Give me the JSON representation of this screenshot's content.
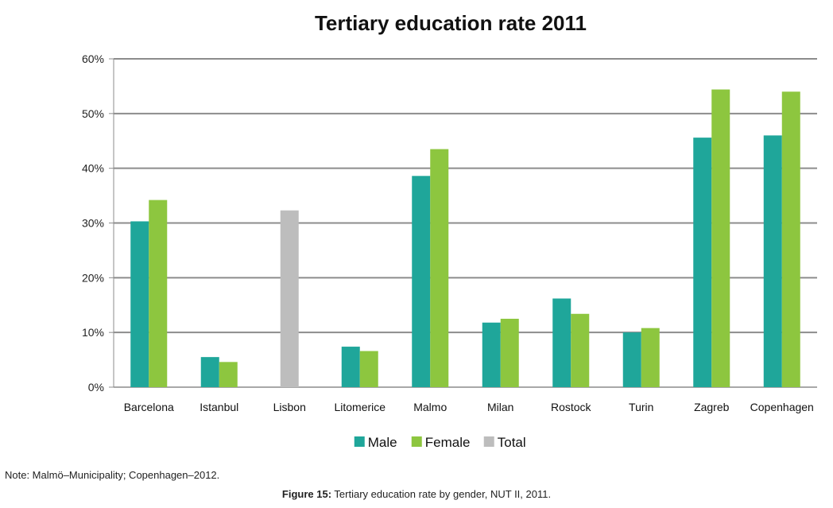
{
  "chart_data": {
    "type": "bar",
    "title": "Tertiary education rate 2011",
    "xlabel": "",
    "ylabel": "",
    "ylim": [
      0,
      60
    ],
    "yticks": [
      "0%",
      "10%",
      "20%",
      "30%",
      "40%",
      "50%",
      "60%"
    ],
    "ytick_values": [
      0,
      10,
      20,
      30,
      40,
      50,
      60
    ],
    "grid": true,
    "legend_position": "bottom",
    "categories": [
      "Barcelona",
      "Istanbul",
      "Lisbon",
      "Litomerice",
      "Malmo",
      "Milan",
      "Rostock",
      "Turin",
      "Zagreb",
      "Copenhagen"
    ],
    "series": [
      {
        "name": "Male",
        "color": "#1fa69a",
        "values": [
          30.3,
          5.5,
          null,
          7.4,
          38.6,
          11.8,
          16.2,
          10.0,
          45.6,
          46.0
        ]
      },
      {
        "name": "Female",
        "color": "#8dc63f",
        "values": [
          34.2,
          4.6,
          null,
          6.6,
          43.5,
          12.5,
          13.4,
          10.8,
          54.4,
          54.0
        ]
      },
      {
        "name": "Total",
        "color": "#bdbdbd",
        "values": [
          null,
          null,
          32.3,
          null,
          null,
          null,
          null,
          null,
          null,
          null
        ]
      }
    ]
  },
  "note": "Note: Malmö–Municipality; Copenhagen–2012.",
  "figure_caption": {
    "label": "Figure 15:",
    "text": " Tertiary education rate by gender, NUT II, 2011."
  }
}
